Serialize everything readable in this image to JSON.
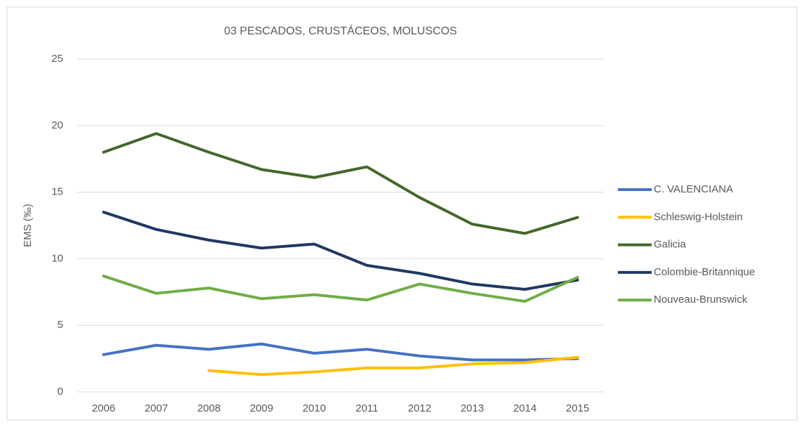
{
  "chart_data": {
    "type": "line",
    "title": "03 PESCADOS, CRUSTÁCEOS, MOLUSCOS",
    "y_label": "EMS (‰)",
    "categories": [
      "2006",
      "2007",
      "2008",
      "2009",
      "2010",
      "2011",
      "2012",
      "2013",
      "2014",
      "2015"
    ],
    "series": [
      {
        "name": "C. VALENCIANA",
        "color": "#4472c4",
        "values": [
          2.8,
          3.5,
          3.2,
          3.6,
          2.9,
          3.2,
          2.7,
          2.4,
          2.4,
          2.5
        ]
      },
      {
        "name": "Schleswig-Holstein",
        "color": "#ffc000",
        "values": [
          null,
          null,
          1.6,
          1.3,
          1.5,
          1.8,
          1.8,
          2.1,
          2.2,
          2.6
        ]
      },
      {
        "name": "Galicia",
        "color": "#43682b",
        "values": [
          18.0,
          19.4,
          18.0,
          16.7,
          16.1,
          16.9,
          14.6,
          12.6,
          11.9,
          13.1
        ]
      },
      {
        "name": "Colombie-Britannique",
        "color": "#203864",
        "values": [
          13.5,
          12.2,
          11.4,
          10.8,
          11.1,
          9.5,
          8.9,
          8.1,
          7.7,
          8.4
        ]
      },
      {
        "name": "Nouveau-Brunswick",
        "color": "#70ad47",
        "values": [
          8.7,
          7.4,
          7.8,
          7.0,
          7.3,
          6.9,
          8.1,
          7.4,
          6.8,
          8.6
        ]
      }
    ],
    "ylim": [
      0,
      25
    ],
    "yticks": [
      0,
      5,
      10,
      15,
      20,
      25
    ],
    "grid": true,
    "legend": "right"
  }
}
